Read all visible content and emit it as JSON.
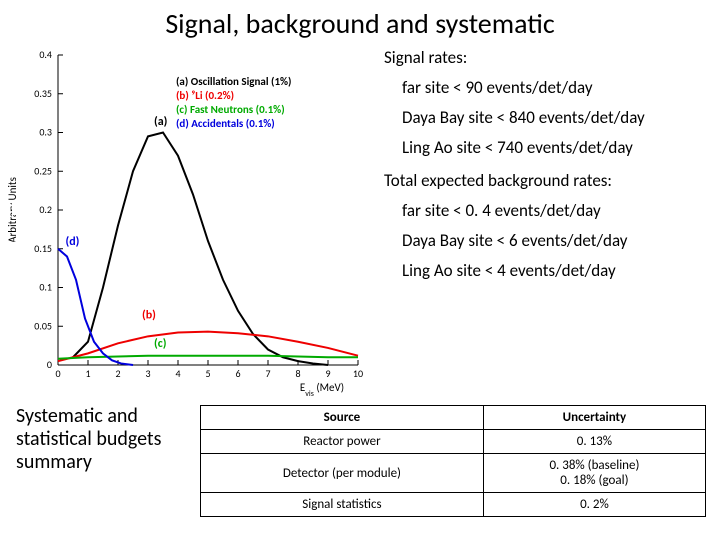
{
  "title": "Signal, background and systematic",
  "chart": {
    "type": "line",
    "y_axis_label": "Arbitrary Units",
    "x_axis_label": "E_vis (MeV)",
    "xlim": [
      0,
      10
    ],
    "ylim": [
      0,
      0.4
    ],
    "ytick_step": 0.05,
    "xtick_step": 1,
    "background_color": "#ffffff",
    "axis_color": "#000000",
    "legend": [
      {
        "id": "a",
        "text": "(a) Oscillation Signal",
        "suffix": "(1%)",
        "color": "#000000"
      },
      {
        "id": "b",
        "text": "(b) ⁹Li (0.2%)",
        "color": "#ee0000"
      },
      {
        "id": "c",
        "text": "(c) Fast Neutrons (0.1%)",
        "color": "#00aa00"
      },
      {
        "id": "d",
        "text": "(d) Accidentals (0.1%)",
        "color": "#0000dd"
      }
    ],
    "series": {
      "a": {
        "color": "#000000",
        "width": 2,
        "points": [
          [
            0.5,
            0.01
          ],
          [
            1,
            0.03
          ],
          [
            1.5,
            0.1
          ],
          [
            2,
            0.18
          ],
          [
            2.5,
            0.25
          ],
          [
            3,
            0.295
          ],
          [
            3.5,
            0.3
          ],
          [
            4,
            0.27
          ],
          [
            4.5,
            0.22
          ],
          [
            5,
            0.16
          ],
          [
            5.5,
            0.11
          ],
          [
            6,
            0.07
          ],
          [
            6.5,
            0.04
          ],
          [
            7,
            0.02
          ],
          [
            7.5,
            0.01
          ],
          [
            8,
            0.005
          ],
          [
            8.5,
            0.002
          ],
          [
            9,
            0.0
          ]
        ]
      },
      "b": {
        "color": "#ee0000",
        "width": 2,
        "points": [
          [
            0,
            0.005
          ],
          [
            1,
            0.015
          ],
          [
            2,
            0.028
          ],
          [
            3,
            0.037
          ],
          [
            4,
            0.042
          ],
          [
            5,
            0.043
          ],
          [
            6,
            0.041
          ],
          [
            7,
            0.037
          ],
          [
            8,
            0.03
          ],
          [
            9,
            0.022
          ],
          [
            10,
            0.012
          ]
        ]
      },
      "c": {
        "color": "#00aa00",
        "width": 2,
        "points": [
          [
            0,
            0.008
          ],
          [
            1,
            0.01
          ],
          [
            2,
            0.011
          ],
          [
            3,
            0.012
          ],
          [
            4,
            0.012
          ],
          [
            5,
            0.012
          ],
          [
            6,
            0.012
          ],
          [
            7,
            0.012
          ],
          [
            8,
            0.011
          ],
          [
            9,
            0.01
          ],
          [
            10,
            0.01
          ]
        ]
      },
      "d": {
        "color": "#0000dd",
        "width": 2,
        "points": [
          [
            0,
            0.15
          ],
          [
            0.3,
            0.14
          ],
          [
            0.6,
            0.11
          ],
          [
            0.9,
            0.06
          ],
          [
            1.2,
            0.03
          ],
          [
            1.5,
            0.015
          ],
          [
            1.8,
            0.006
          ],
          [
            2.1,
            0.002
          ],
          [
            2.5,
            0.0
          ]
        ]
      }
    },
    "markers": [
      {
        "label": "(a)",
        "at": [
          3.2,
          0.31
        ],
        "color": "#000000"
      },
      {
        "label": "(b)",
        "at": [
          2.8,
          0.06
        ],
        "color": "#ee0000"
      },
      {
        "label": "(c)",
        "at": [
          3.2,
          0.023
        ],
        "color": "#00aa00"
      },
      {
        "label": "(d)",
        "at": [
          0.25,
          0.155
        ],
        "color": "#0000dd"
      }
    ]
  },
  "signal_rates": {
    "heading": "Signal rates:",
    "items": [
      "far site < 90 events/det/day",
      "Daya Bay site < 840 events/det/day",
      "Ling Ao site < 740 events/det/day"
    ]
  },
  "background_rates": {
    "heading": "Total expected background rates:",
    "items": [
      "far site < 0. 4 events/det/day",
      "Daya Bay site < 6 events/det/day",
      "Ling Ao site < 4 events/det/day"
    ]
  },
  "budget_label": "Systematic and statistical budgets summary",
  "table": {
    "headers": [
      "Source",
      "Uncertainty"
    ],
    "rows": [
      [
        "Reactor power",
        "0. 13%"
      ],
      [
        "Detector (per module)",
        "0. 38% (baseline)\n0. 18% (goal)"
      ],
      [
        "Signal statistics",
        "0. 2%"
      ]
    ]
  }
}
